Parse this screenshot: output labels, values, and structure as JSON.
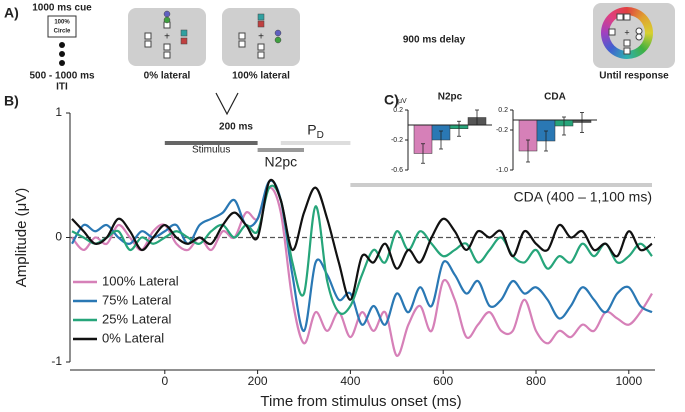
{
  "panel_a": {
    "label": "A)",
    "cue": "1000 ms cue",
    "cue_box": [
      "100%",
      "Circle"
    ],
    "iti": [
      "500 - 1000 ms",
      "ITI"
    ],
    "frame1": "0% lateral",
    "frame2": "100% lateral",
    "delay": "900 ms delay",
    "response": "Until response",
    "interval": "200 ms"
  },
  "panel_b_label": "B)",
  "panel_c_label": "C)",
  "chart_data": [
    {
      "type": "line",
      "xlabel": "Time from stimulus onset (ms)",
      "ylabel": "Amplitude (μV)",
      "x": [
        -200,
        -175,
        -150,
        -125,
        -100,
        -75,
        -50,
        -25,
        0,
        25,
        50,
        75,
        100,
        125,
        150,
        175,
        200,
        225,
        250,
        275,
        300,
        325,
        350,
        375,
        400,
        425,
        450,
        475,
        500,
        525,
        550,
        575,
        600,
        625,
        650,
        675,
        700,
        725,
        750,
        775,
        800,
        825,
        850,
        875,
        900,
        925,
        950,
        975,
        1000,
        1025,
        1050
      ],
      "xlim": [
        -200,
        1050
      ],
      "xticks": [
        0,
        200,
        400,
        600,
        800,
        1000
      ],
      "ylim": [
        -1,
        1
      ],
      "yticks": [
        -1,
        0,
        1
      ],
      "zero_line": true,
      "legend": "lower left",
      "series": [
        {
          "name": "100% Lateral",
          "color": "#d680b8",
          "values": [
            0.0,
            -0.1,
            0.0,
            -0.05,
            0.1,
            0.0,
            -0.1,
            0.05,
            0.1,
            -0.05,
            -0.1,
            0.0,
            -0.1,
            0.05,
            0.0,
            0.2,
            0.15,
            0.4,
            0.2,
            -0.5,
            -0.85,
            -0.6,
            -0.75,
            -0.6,
            -0.8,
            -0.6,
            -0.75,
            -0.6,
            -0.95,
            -0.7,
            -0.55,
            -0.75,
            -0.35,
            -0.5,
            -0.8,
            -0.7,
            -0.6,
            -0.75,
            -0.75,
            -0.5,
            -0.75,
            -0.85,
            -0.75,
            -0.8,
            -0.7,
            -0.75,
            -0.6,
            -0.65,
            -0.7,
            -0.6,
            -0.45
          ]
        },
        {
          "name": "75% Lateral",
          "color": "#2a78b4",
          "values": [
            -0.05,
            0.1,
            0.05,
            0.1,
            0.0,
            -0.05,
            0.05,
            0.0,
            0.05,
            0.1,
            -0.05,
            0.1,
            0.15,
            0.2,
            0.3,
            0.1,
            0.15,
            0.45,
            0.3,
            -0.3,
            -0.75,
            -0.2,
            -0.3,
            -0.5,
            -0.45,
            -0.7,
            -0.55,
            -0.7,
            -0.45,
            -0.6,
            -0.4,
            -0.55,
            -0.2,
            -0.3,
            -0.45,
            -0.35,
            -0.55,
            -0.5,
            -0.35,
            -0.45,
            -0.4,
            -0.5,
            -0.65,
            -0.55,
            -0.4,
            -0.5,
            -0.6,
            -0.45,
            -0.4,
            -0.55,
            -0.6
          ]
        },
        {
          "name": "25% Lateral",
          "color": "#26a57a",
          "values": [
            0.05,
            0.0,
            -0.05,
            0.0,
            0.05,
            -0.1,
            0.0,
            -0.05,
            0.0,
            0.05,
            0.0,
            -0.05,
            0.05,
            0.1,
            0.0,
            0.1,
            0.05,
            0.4,
            0.3,
            -0.2,
            -0.45,
            0.25,
            -0.35,
            -0.6,
            -0.55,
            -0.3,
            -0.1,
            -0.2,
            0.05,
            -0.1,
            0.05,
            -0.05,
            -0.15,
            -0.1,
            -0.05,
            -0.2,
            -0.1,
            0.0,
            -0.15,
            -0.2,
            -0.1,
            -0.25,
            -0.15,
            -0.2,
            -0.05,
            -0.15,
            -0.05,
            -0.2,
            -0.15,
            -0.05,
            -0.15
          ]
        },
        {
          "name": "0% Lateral",
          "color": "#111111",
          "values": [
            0.15,
            0.05,
            -0.05,
            0.0,
            0.15,
            0.05,
            -0.1,
            0.0,
            0.1,
            0.0,
            -0.05,
            0.0,
            -0.05,
            0.1,
            0.2,
            0.1,
            0.0,
            0.45,
            0.3,
            -0.1,
            0.2,
            0.4,
            0.15,
            -0.2,
            -0.5,
            -0.15,
            -0.2,
            -0.05,
            -0.25,
            -0.1,
            -0.2,
            0.0,
            0.15,
            0.05,
            -0.1,
            0.05,
            0.0,
            0.05,
            -0.15,
            0.05,
            -0.05,
            -0.1,
            0.1,
            0.0,
            0.05,
            -0.1,
            -0.05,
            -0.15,
            0.05,
            -0.1,
            -0.05
          ]
        }
      ],
      "spans": [
        {
          "label": "Stimulus",
          "start": 0,
          "end": 200,
          "color": "#666666"
        },
        {
          "label": "N2pc",
          "start": 200,
          "end": 300,
          "color": "#999999"
        },
        {
          "label": "P",
          "sub": "D",
          "start": 250,
          "end": 400,
          "color": "#dddddd"
        },
        {
          "label": "CDA (400 – 1,100 ms)",
          "start": 400,
          "end": 1050,
          "color": "#cccccc"
        }
      ]
    },
    {
      "type": "bar",
      "title": "N2pc",
      "ylabel": "μV",
      "ylim": [
        -0.6,
        0.2
      ],
      "yticks": [
        -0.6,
        -0.2,
        0.2
      ],
      "values": [
        -0.38,
        -0.2,
        -0.05,
        0.1
      ],
      "errors": [
        0.13,
        0.12,
        0.1,
        0.1
      ],
      "colors": [
        "#d680b8",
        "#2a78b4",
        "#26a57a",
        "#555555"
      ]
    },
    {
      "type": "bar",
      "title": "CDA",
      "ylim": [
        -1.0,
        0.2
      ],
      "yticks": [
        {
          "value": -1.0,
          "label": "-1.0"
        },
        -0.2,
        0.2
      ],
      "values": [
        -0.62,
        -0.42,
        -0.12,
        -0.05
      ],
      "errors": [
        0.22,
        0.2,
        0.18,
        0.2
      ],
      "colors": [
        "#d680b8",
        "#2a78b4",
        "#26a57a",
        "#555555"
      ]
    }
  ]
}
